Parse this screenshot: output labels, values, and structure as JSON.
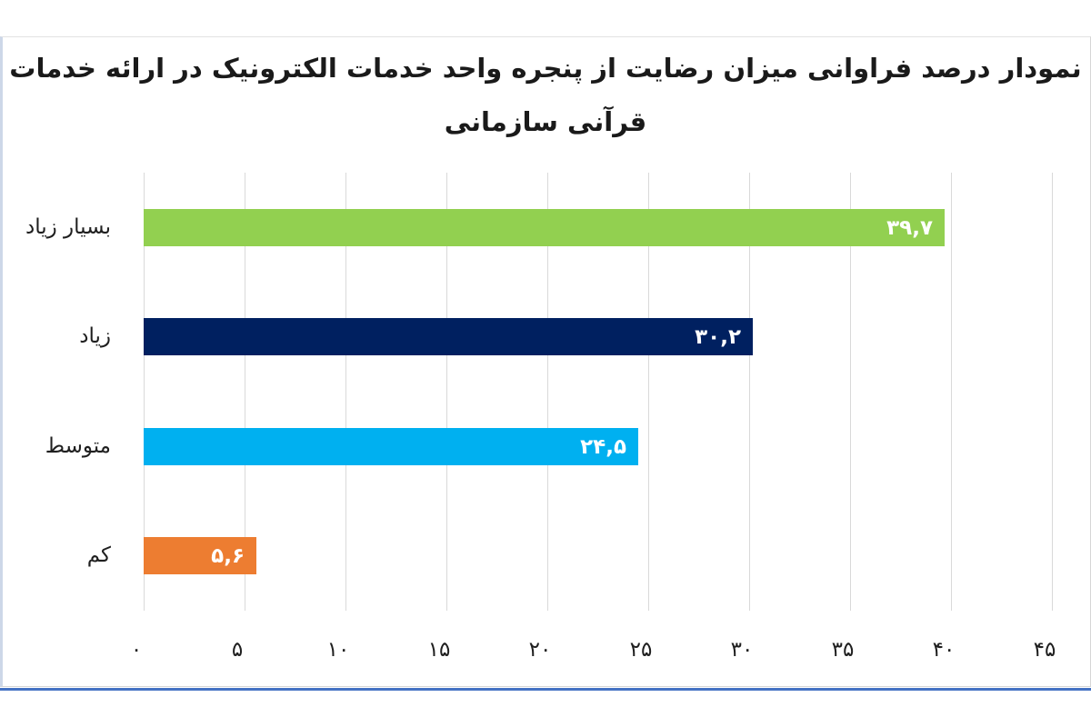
{
  "chart_data": {
    "type": "bar",
    "orientation": "horizontal",
    "title_lines": [
      "نمودار درصد فراوانی میزان رضایت از پنجره واحد خدمات الکترونیک در ارائه خدمات",
      "قرآنی سازمانی"
    ],
    "categories": [
      "بسیار زیاد",
      "زیاد",
      "متوسط",
      "کم"
    ],
    "values": [
      39.7,
      30.2,
      24.5,
      5.6
    ],
    "value_labels": [
      "۳۹,۷",
      "۳۰,۲",
      "۲۴,۵",
      "۵,۶"
    ],
    "bar_colors": [
      "#92D050",
      "#002060",
      "#00B0F0",
      "#ED7D31"
    ],
    "value_label_color": "#FFFFFF",
    "xlim": [
      0,
      45
    ],
    "x_tick_values": [
      0,
      5,
      10,
      15,
      20,
      25,
      30,
      35,
      40,
      45
    ],
    "x_tick_labels": [
      "۰",
      "۵",
      "۱۰",
      "۱۵",
      "۲۰",
      "۲۵",
      "۳۰",
      "۳۵",
      "۴۰",
      "۴۵"
    ],
    "grid": true,
    "gridline_color": "#D9D9D9",
    "legend_position": "none"
  },
  "frame": {
    "accent_color": "#4472C4",
    "left_border_color": "#CDD7E8"
  }
}
